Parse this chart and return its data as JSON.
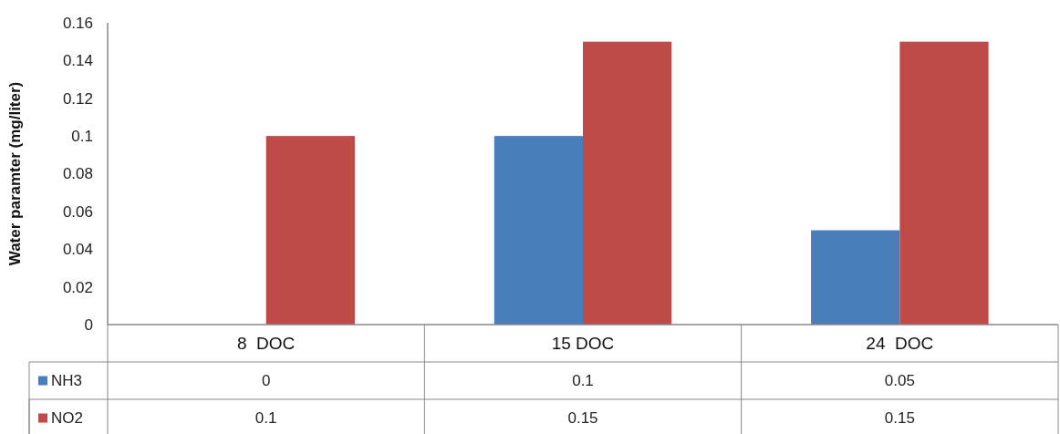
{
  "chart_data": {
    "type": "bar",
    "ylabel": "Water paramter (mg/liter)",
    "categories": [
      "8  DOC",
      "15 DOC",
      "24  DOC"
    ],
    "series": [
      {
        "name": "NH3",
        "color": "#4a7ebb",
        "values": [
          0,
          0.1,
          0.05
        ]
      },
      {
        "name": "NO2",
        "color": "#be4b48",
        "values": [
          0.1,
          0.15,
          0.15
        ]
      }
    ],
    "ylim": [
      0,
      0.16
    ],
    "yticks": [
      0,
      0.02,
      0.04,
      0.06,
      0.08,
      0.1,
      0.12,
      0.14,
      0.16
    ],
    "grid": false,
    "data_labels": true,
    "legend": "bottom"
  }
}
